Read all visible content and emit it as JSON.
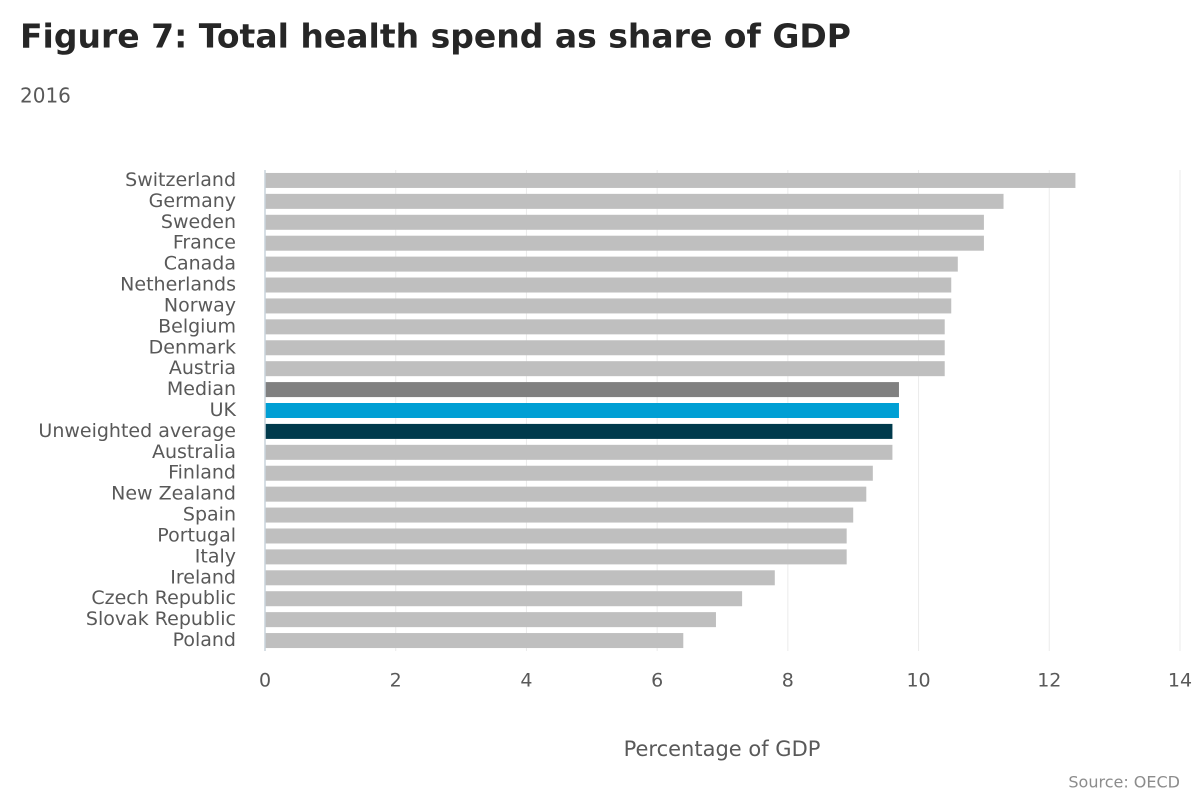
{
  "chart_data": {
    "type": "bar",
    "orientation": "horizontal",
    "title": "Figure 7: Total health spend as share of GDP",
    "subtitle": "2016",
    "x_label": "Percentage of GDP",
    "source": "Source: OECD",
    "categories": [
      "Switzerland",
      "Germany",
      "Sweden",
      "France",
      "Canada",
      "Netherlands",
      "Norway",
      "Belgium",
      "Denmark",
      "Austria",
      "Median",
      "UK",
      "Unweighted average",
      "Australia",
      "Finland",
      "New Zealand",
      "Spain",
      "Portugal",
      "Italy",
      "Ireland",
      "Czech Republic",
      "Slovak Republic",
      "Poland"
    ],
    "values": [
      12.4,
      11.3,
      11.0,
      11.0,
      10.6,
      10.5,
      10.5,
      10.4,
      10.4,
      10.4,
      9.7,
      9.7,
      9.6,
      9.6,
      9.3,
      9.2,
      9.0,
      8.9,
      8.9,
      7.8,
      7.3,
      6.9,
      6.4
    ],
    "colors": [
      "#bfbfbf",
      "#bfbfbf",
      "#bfbfbf",
      "#bfbfbf",
      "#bfbfbf",
      "#bfbfbf",
      "#bfbfbf",
      "#bfbfbf",
      "#bfbfbf",
      "#bfbfbf",
      "#808080",
      "#009fd4",
      "#003a4c",
      "#bfbfbf",
      "#bfbfbf",
      "#bfbfbf",
      "#bfbfbf",
      "#bfbfbf",
      "#bfbfbf",
      "#bfbfbf",
      "#bfbfbf",
      "#bfbfbf",
      "#bfbfbf"
    ],
    "xlim": [
      0,
      14
    ],
    "xticks": [
      0,
      2,
      4,
      6,
      8,
      10,
      12,
      14
    ],
    "grid": true
  }
}
